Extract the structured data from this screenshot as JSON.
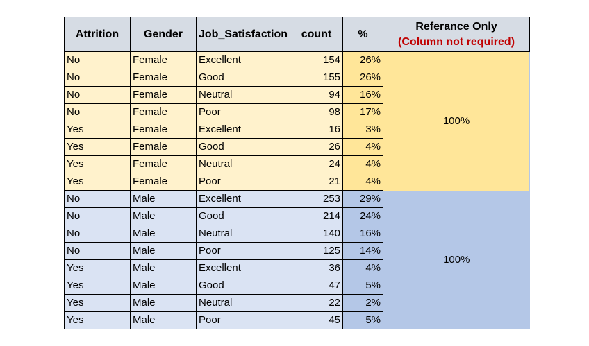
{
  "table": {
    "headers": {
      "attrition": "Attrition",
      "gender": "Gender",
      "job_satisfaction": "Job_Satisfaction",
      "count": "count",
      "percent": "%",
      "reference_title": "Referance Only",
      "reference_note": "(Column not required)"
    },
    "rows": [
      {
        "attrition": "No",
        "gender": "Female",
        "job_satisfaction": "Excellent",
        "count": "154",
        "percent": "26%"
      },
      {
        "attrition": "No",
        "gender": "Female",
        "job_satisfaction": "Good",
        "count": "155",
        "percent": "26%"
      },
      {
        "attrition": "No",
        "gender": "Female",
        "job_satisfaction": "Neutral",
        "count": "94",
        "percent": "16%"
      },
      {
        "attrition": "No",
        "gender": "Female",
        "job_satisfaction": "Poor",
        "count": "98",
        "percent": "17%"
      },
      {
        "attrition": "Yes",
        "gender": "Female",
        "job_satisfaction": "Excellent",
        "count": "16",
        "percent": "3%"
      },
      {
        "attrition": "Yes",
        "gender": "Female",
        "job_satisfaction": "Good",
        "count": "26",
        "percent": "4%"
      },
      {
        "attrition": "Yes",
        "gender": "Female",
        "job_satisfaction": "Neutral",
        "count": "24",
        "percent": "4%"
      },
      {
        "attrition": "Yes",
        "gender": "Female",
        "job_satisfaction": "Poor",
        "count": "21",
        "percent": "4%"
      },
      {
        "attrition": "No",
        "gender": "Male",
        "job_satisfaction": "Excellent",
        "count": "253",
        "percent": "29%"
      },
      {
        "attrition": "No",
        "gender": "Male",
        "job_satisfaction": "Good",
        "count": "214",
        "percent": "24%"
      },
      {
        "attrition": "No",
        "gender": "Male",
        "job_satisfaction": "Neutral",
        "count": "140",
        "percent": "16%"
      },
      {
        "attrition": "No",
        "gender": "Male",
        "job_satisfaction": "Poor",
        "count": "125",
        "percent": "14%"
      },
      {
        "attrition": "Yes",
        "gender": "Male",
        "job_satisfaction": "Excellent",
        "count": "36",
        "percent": "4%"
      },
      {
        "attrition": "Yes",
        "gender": "Male",
        "job_satisfaction": "Good",
        "count": "47",
        "percent": "5%"
      },
      {
        "attrition": "Yes",
        "gender": "Male",
        "job_satisfaction": "Neutral",
        "count": "22",
        "percent": "2%"
      },
      {
        "attrition": "Yes",
        "gender": "Male",
        "job_satisfaction": "Poor",
        "count": "45",
        "percent": "5%"
      }
    ],
    "reference": {
      "female_total": "100%",
      "male_total": "100%"
    }
  },
  "colors": {
    "header_fill": "#d6dce4",
    "female_fill": "#fff2cc",
    "female_accent": "#ffe699",
    "male_fill": "#dae3f3",
    "male_accent": "#b4c7e7",
    "note_red": "#c00000"
  }
}
